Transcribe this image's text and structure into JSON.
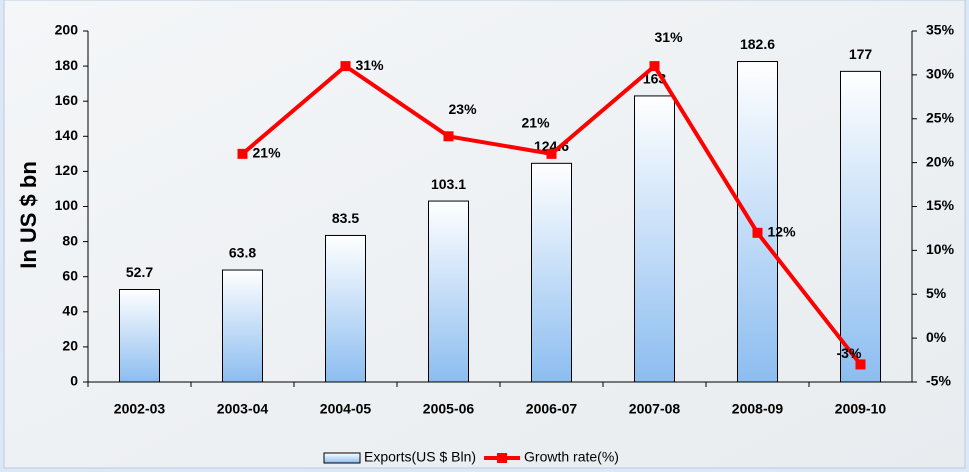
{
  "chart_data": {
    "type": "bar",
    "y_label": "In US $ bn",
    "categories": [
      "2002-03",
      "2003-04",
      "2004-05",
      "2005-06",
      "2006-07",
      "2007-08",
      "2008-09",
      "2009-10"
    ],
    "series": [
      {
        "name": "Exports(US $ Bln)",
        "type": "bar",
        "color": "#8cbdf0",
        "values": [
          52.7,
          63.8,
          83.5,
          103.1,
          124.6,
          163,
          182.6,
          177
        ]
      },
      {
        "name": "Growth rate(%)",
        "type": "line",
        "axis": "y2",
        "color": "#ff0000",
        "values": [
          null,
          21,
          31,
          23,
          21,
          31,
          12,
          -3
        ],
        "value_labels": [
          null,
          "21%",
          "31%",
          "23%",
          "21%",
          "31%",
          "12%",
          "-3%"
        ]
      }
    ],
    "ylim": [
      0,
      200
    ],
    "yticks": [
      0,
      20,
      40,
      60,
      80,
      100,
      120,
      140,
      160,
      180,
      200
    ],
    "y2lim": [
      -5,
      35
    ],
    "y2ticks": [
      {
        "value": -5,
        "label": "-5%"
      },
      {
        "value": 0,
        "label": "0%"
      },
      {
        "value": 5,
        "label": "5%"
      },
      {
        "value": 10,
        "label": "10%"
      },
      {
        "value": 15,
        "label": "15%"
      },
      {
        "value": 20,
        "label": "20%"
      },
      {
        "value": 25,
        "label": "25%"
      },
      {
        "value": 30,
        "label": "30%"
      },
      {
        "value": 35,
        "label": "35%"
      }
    ],
    "legend": "bottom"
  }
}
